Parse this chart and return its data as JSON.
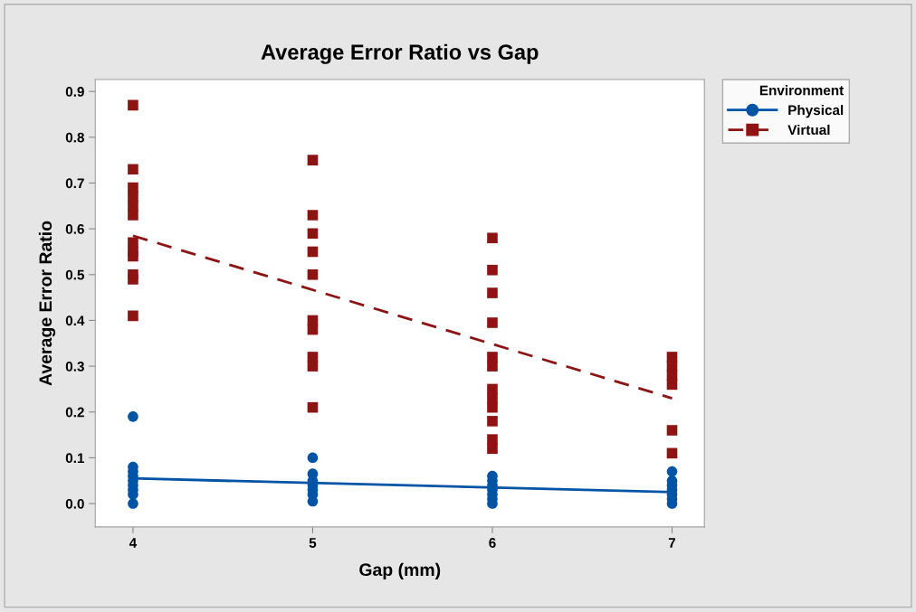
{
  "chart_data": {
    "type": "scatter",
    "title": "Average Error Ratio vs Gap",
    "xlabel": "Gap (mm)",
    "ylabel": "Average Error Ratio",
    "legend_title": "Environment",
    "legend": "top right",
    "xlim": [
      3.79,
      7.18
    ],
    "xticks": [
      4,
      5,
      6,
      7
    ],
    "ylim": [
      -0.051,
      0.926
    ],
    "yticks": [
      {
        "value": 0,
        "label": "0.0"
      },
      0.1,
      0.2,
      0.3,
      0.4,
      0.5,
      0.6,
      0.7,
      0.8,
      0.9
    ],
    "grid": false,
    "series": [
      {
        "name": "Physical",
        "color": "#0054a6",
        "marker": "circle",
        "line_style": "solid",
        "x": [
          4,
          4,
          4,
          4,
          4,
          4,
          4,
          4,
          4,
          5,
          5,
          5,
          5,
          5,
          5,
          5,
          6,
          6,
          6,
          6,
          6,
          6,
          6,
          7,
          7,
          7,
          7,
          7,
          7,
          7
        ],
        "values": [
          0.19,
          0.08,
          0.07,
          0.06,
          0.05,
          0.04,
          0.03,
          0.02,
          0.0,
          0.1,
          0.065,
          0.05,
          0.04,
          0.03,
          0.02,
          0.005,
          0.06,
          0.05,
          0.04,
          0.03,
          0.02,
          0.01,
          0.0,
          0.07,
          0.05,
          0.04,
          0.03,
          0.02,
          0.01,
          0.0
        ]
      },
      {
        "name": "Virtual",
        "color": "#8e1414",
        "marker": "square",
        "line_style": "dashed",
        "x": [
          4,
          4,
          4,
          4,
          4,
          4,
          4,
          4,
          4,
          4,
          4,
          4,
          5,
          5,
          5,
          5,
          5,
          5,
          5,
          5,
          5,
          5,
          6,
          6,
          6,
          6,
          6,
          6,
          6,
          6,
          6,
          6,
          6,
          6,
          7,
          7,
          7,
          7,
          7,
          7
        ],
        "values": [
          0.87,
          0.73,
          0.69,
          0.67,
          0.65,
          0.63,
          0.57,
          0.55,
          0.54,
          0.5,
          0.49,
          0.41,
          0.75,
          0.63,
          0.59,
          0.55,
          0.5,
          0.4,
          0.38,
          0.32,
          0.3,
          0.21,
          0.58,
          0.51,
          0.46,
          0.395,
          0.32,
          0.3,
          0.25,
          0.23,
          0.21,
          0.18,
          0.14,
          0.12,
          0.32,
          0.3,
          0.28,
          0.26,
          0.16,
          0.11
        ]
      },
      {
        "type": "line",
        "color": "#0054a6",
        "line_style": "solid",
        "marker": "none",
        "x": [
          4,
          7
        ],
        "values": [
          0.055,
          0.025
        ]
      },
      {
        "type": "line",
        "color": "#8e1414",
        "line_style": "dashed",
        "marker": "none",
        "x": [
          4,
          7
        ],
        "values": [
          0.585,
          0.23
        ]
      }
    ]
  }
}
